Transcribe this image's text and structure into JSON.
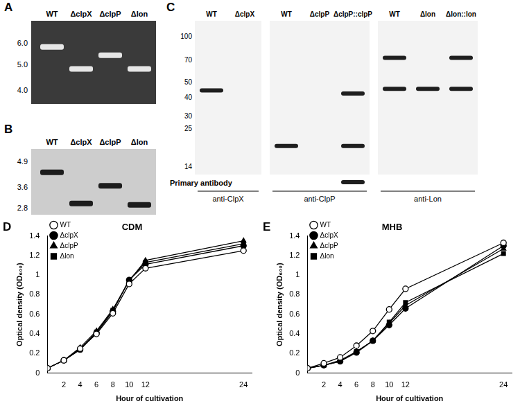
{
  "panel_labels": [
    "A",
    "B",
    "C",
    "D",
    "E"
  ],
  "gels": [
    {
      "ladder": [
        {
          "value": 6,
          "label": "6.0"
        },
        {
          "value": 5,
          "label": "5.0"
        },
        {
          "value": 4,
          "label": "4.0"
        }
      ],
      "lanes": [
        {
          "label": "WT",
          "bands": [
            5.8
          ]
        },
        {
          "label": "ΔclpX",
          "bands": [
            4.8
          ]
        },
        {
          "label": "ΔclpP",
          "bands": [
            5.4
          ]
        },
        {
          "label": "Δlon",
          "bands": [
            4.8
          ]
        }
      ]
    },
    {
      "ladder": [
        4.9,
        3.6,
        2.8
      ],
      "lanes": [
        {
          "label": "WT",
          "bands": [
            4.3
          ]
        },
        {
          "label": "ΔclpX",
          "bands": [
            2.95
          ]
        },
        {
          "label": "ΔclpP",
          "bands": [
            3.65
          ]
        },
        {
          "label": "Δlon",
          "bands": [
            2.9
          ]
        }
      ]
    },
    {
      "ladder": [
        100,
        70,
        50,
        40,
        30,
        25,
        14
      ],
      "title": "Primary antibody",
      "blots": [
        {
          "antibody": "anti-ClpX",
          "lanes": [
            {
              "label": "WT",
              "bands": [
                44
              ]
            },
            {
              "label": "ΔclpX",
              "bands": []
            }
          ]
        },
        {
          "antibody": "anti-ClpP",
          "lanes": [
            {
              "label": "WT",
              "bands": [
                19
              ]
            },
            {
              "label": "ΔclpP",
              "bands": []
            },
            {
              "label": "ΔclpP::clpP",
              "bands": [
                42,
                19,
                11
              ]
            }
          ]
        },
        {
          "antibody": "anti-Lon",
          "lanes": [
            {
              "label": "WT",
              "bands": [
                72,
                45
              ]
            },
            {
              "label": "Δlon",
              "bands": [
                45
              ]
            },
            {
              "label": "Δlon::lon",
              "bands": [
                72,
                45
              ]
            }
          ]
        }
      ]
    }
  ],
  "chart_data": [
    {
      "type": "line",
      "title": "CDM",
      "x_label": "Hour of cultivation",
      "y_label": "Optical density (OD₆₀₀)",
      "x": [
        0,
        2,
        4,
        6,
        8,
        10,
        12,
        24
      ],
      "xlim": [
        0,
        25
      ],
      "xticks": [
        2,
        4,
        6,
        8,
        10,
        12,
        24
      ],
      "ylim": [
        0,
        1.4
      ],
      "yticks": [
        0,
        0.2,
        0.4,
        0.6,
        0.8,
        1,
        1.2,
        1.4
      ],
      "grid": false,
      "legend": "upper left",
      "series": [
        {
          "name": "WT",
          "color": "#000000",
          "marker": "circle-open",
          "values": [
            0.05,
            0.13,
            0.25,
            0.4,
            0.61,
            0.91,
            1.07,
            1.25
          ]
        },
        {
          "name": "ΔclpX",
          "color": "#000000",
          "marker": "circle",
          "values": [
            0.05,
            0.13,
            0.24,
            0.41,
            0.63,
            0.95,
            1.11,
            1.3
          ]
        },
        {
          "name": "ΔclpP",
          "color": "#000000",
          "marker": "triangle",
          "values": [
            0.05,
            0.13,
            0.26,
            0.43,
            0.65,
            0.94,
            1.15,
            1.35
          ]
        },
        {
          "name": "Δlon",
          "color": "#000000",
          "marker": "square",
          "values": [
            0.05,
            0.13,
            0.24,
            0.42,
            0.64,
            0.95,
            1.13,
            1.32
          ]
        }
      ]
    },
    {
      "type": "line",
      "title": "MHB",
      "x_label": "Hour of cultivation",
      "y_label": "Optical density (OD₆₀₀)",
      "x": [
        0,
        2,
        4,
        6,
        8,
        10,
        12,
        24
      ],
      "xlim": [
        0,
        25
      ],
      "xticks": [
        2,
        4,
        6,
        8,
        10,
        12,
        24
      ],
      "ylim": [
        0,
        1.4
      ],
      "yticks": [
        0,
        0.2,
        0.4,
        0.6,
        0.8,
        1,
        1.2,
        1.4
      ],
      "grid": false,
      "legend": "upper left",
      "series": [
        {
          "name": "WT",
          "color": "#000000",
          "marker": "circle-open",
          "values": [
            0.05,
            0.1,
            0.16,
            0.28,
            0.43,
            0.65,
            0.86,
            1.33
          ]
        },
        {
          "name": "ΔclpX",
          "color": "#000000",
          "marker": "circle",
          "values": [
            0.05,
            0.08,
            0.12,
            0.21,
            0.33,
            0.49,
            0.66,
            1.3
          ]
        },
        {
          "name": "ΔclpP",
          "color": "#000000",
          "marker": "triangle",
          "values": [
            0.05,
            0.08,
            0.13,
            0.22,
            0.33,
            0.51,
            0.69,
            1.27
          ]
        },
        {
          "name": "Δlon",
          "color": "#000000",
          "marker": "square",
          "values": [
            0.05,
            0.08,
            0.12,
            0.22,
            0.33,
            0.52,
            0.72,
            1.22
          ]
        }
      ]
    }
  ]
}
